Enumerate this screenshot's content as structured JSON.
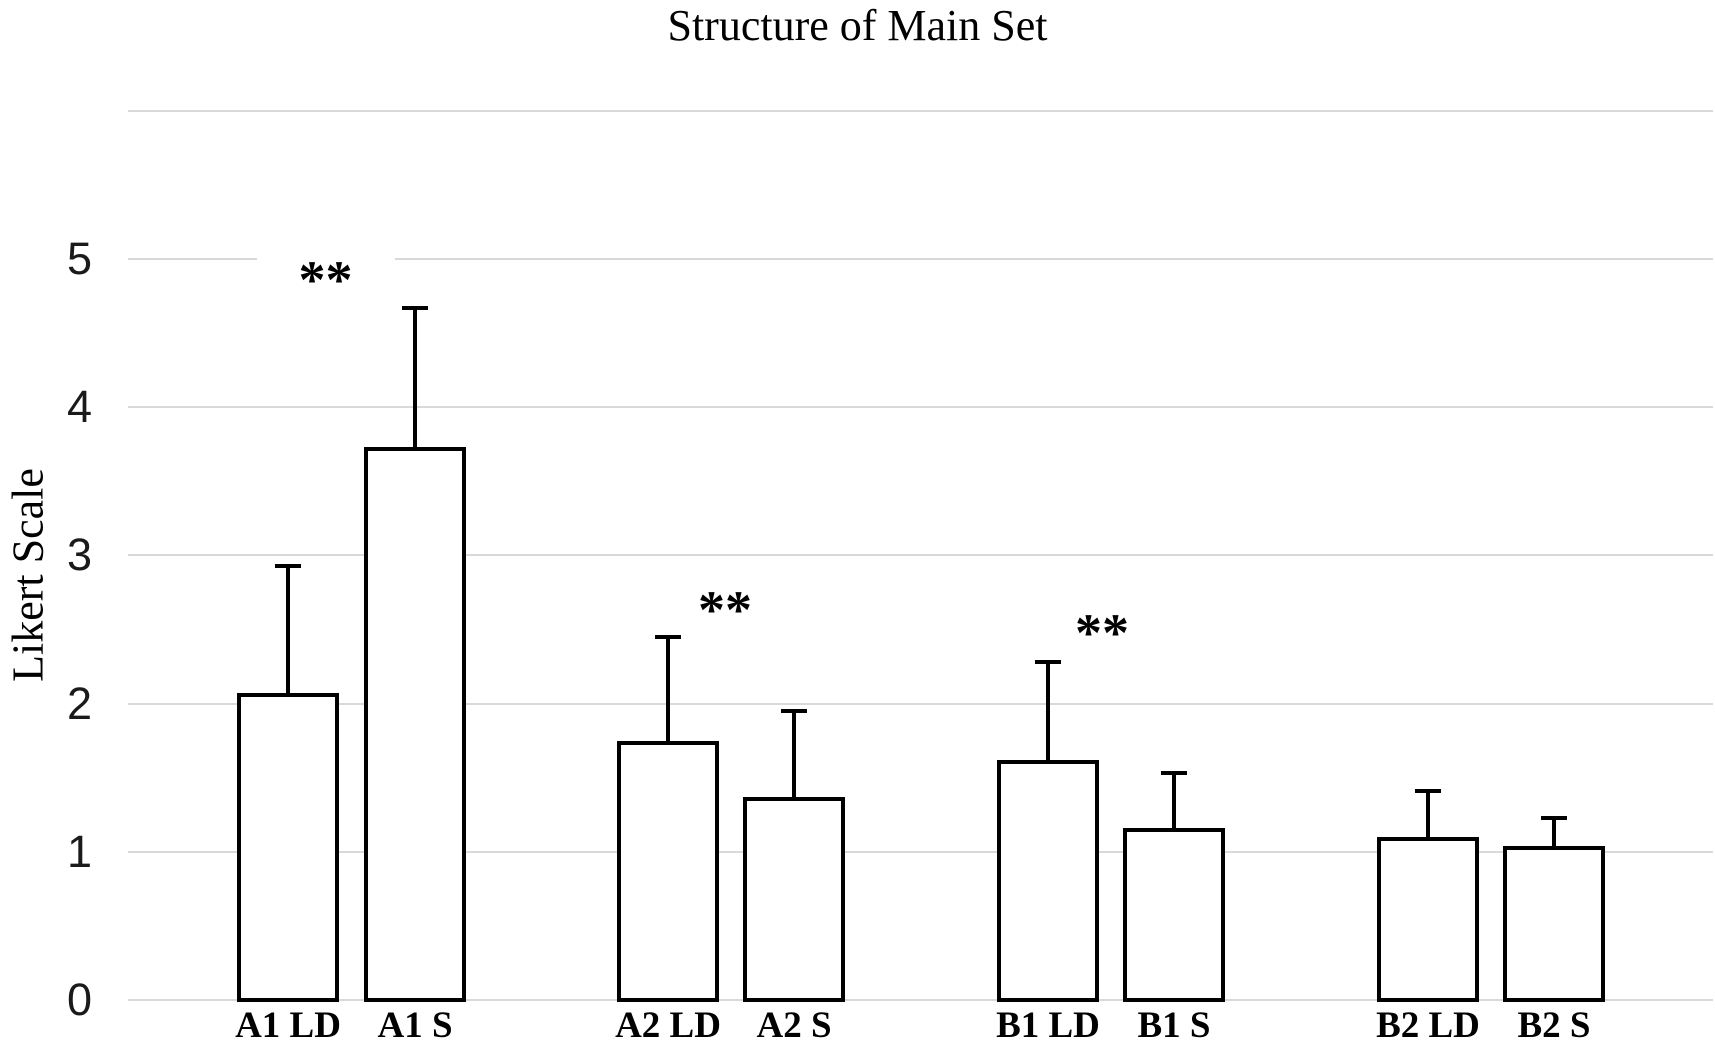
{
  "chart_data": {
    "type": "bar",
    "title": "Structure of Main Set",
    "ylabel": "Likert Scale",
    "xlabel": "",
    "categories": [
      "A1 LD",
      "A1 S",
      "A2 LD",
      "A2 S",
      "B1 LD",
      "B1 S",
      "B2 LD",
      "B2 S"
    ],
    "values": [
      2.07,
      3.73,
      1.75,
      1.37,
      1.62,
      1.16,
      1.1,
      1.04
    ],
    "error_up": [
      0.86,
      0.94,
      0.7,
      0.58,
      0.66,
      0.37,
      0.31,
      0.19
    ],
    "ylim": [
      0,
      6
    ],
    "yticks": [
      0,
      1,
      2,
      3,
      4,
      5
    ],
    "grid": true,
    "legend": "none",
    "bar_fill": "#ffffff",
    "bar_border": "#000000",
    "gridline_color": "#d9d9d9",
    "annotations": [
      {
        "text": "**",
        "between": [
          0,
          1
        ],
        "y": 4.92,
        "dx": -26
      },
      {
        "text": "**",
        "between": [
          2,
          3
        ],
        "y": 2.69,
        "dx": -6
      },
      {
        "text": "**",
        "between": [
          4,
          5
        ],
        "y": 2.54,
        "dx": -9
      }
    ]
  }
}
